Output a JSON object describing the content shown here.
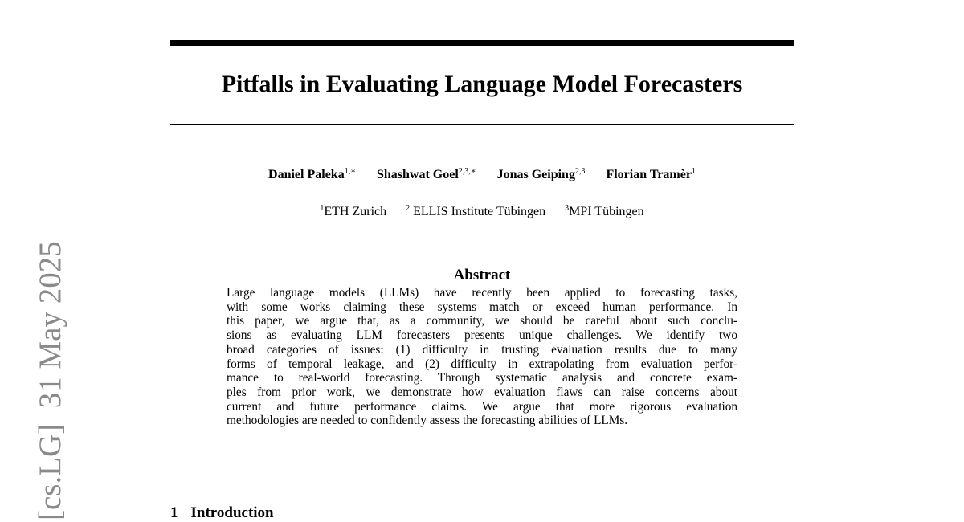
{
  "arxiv_stamp": {
    "category": "[cs.LG]",
    "date": "31 May 2025"
  },
  "title": "Pitfalls in Evaluating Language Model Forecasters",
  "authors": [
    {
      "name": "Daniel Paleka",
      "sup": "1,∗"
    },
    {
      "name": "Shashwat Goel",
      "sup": "2,3,∗"
    },
    {
      "name": "Jonas Geiping",
      "sup": "2,3"
    },
    {
      "name": "Florian Tramèr",
      "sup": "1"
    }
  ],
  "affiliations": [
    {
      "sup": "1",
      "name": "ETH Zurich"
    },
    {
      "sup": "2",
      "name": " ELLIS Institute Tübingen"
    },
    {
      "sup": "3",
      "name": "MPI Tübingen"
    }
  ],
  "abstract": {
    "heading": "Abstract",
    "lines": [
      "Large language models (LLMs) have recently been applied to forecasting tasks,",
      "with some works claiming these systems match or exceed human performance. In",
      "this paper, we argue that, as a community, we should be careful about such conclu-",
      "sions as evaluating LLM forecasters presents unique challenges. We identify two",
      "broad categories of issues: (1) difficulty in trusting evaluation results due to many",
      "forms of temporal leakage, and (2) difficulty in extrapolating from evaluation perfor-",
      "mance to real-world forecasting. Through systematic analysis and concrete exam-",
      "ples from prior work, we demonstrate how evaluation flaws can raise concerns about",
      "current and future performance claims. We argue that more rigorous evaluation",
      "methodologies are needed to confidently assess the forecasting abilities of LLMs."
    ]
  },
  "section": {
    "number": "1",
    "title": "Introduction"
  }
}
